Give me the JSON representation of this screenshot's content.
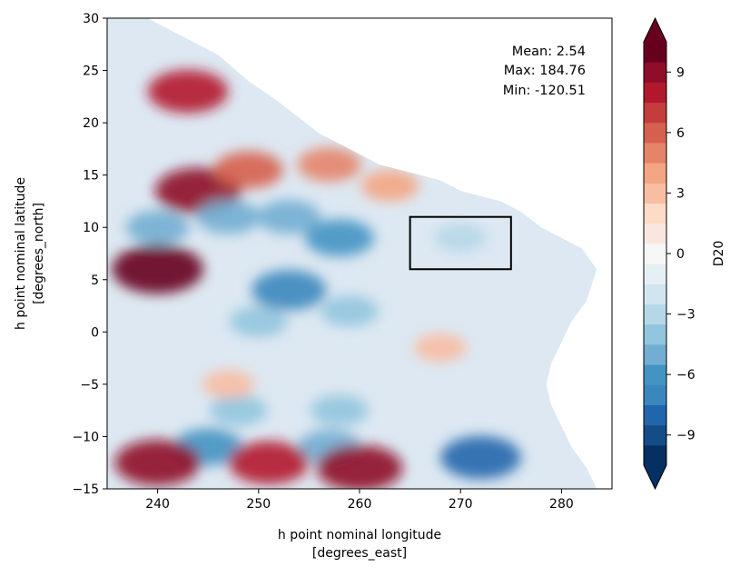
{
  "chart_data": {
    "type": "heatmap",
    "variable": "D20",
    "xlabel": "h point nominal longitude",
    "xlabel_units": "[degrees_east]",
    "ylabel": "h point nominal latitude",
    "ylabel_units": "[degrees_north]",
    "xlim": [
      235,
      285
    ],
    "ylim": [
      -15,
      30
    ],
    "x_ticks": [
      240,
      250,
      260,
      270,
      280
    ],
    "y_ticks": [
      -15,
      -10,
      -5,
      0,
      5,
      10,
      15,
      20,
      25,
      30
    ],
    "colorbar": {
      "label": "D20",
      "min": -10.5,
      "max": 10.5,
      "step": 1,
      "extend": "both",
      "ticks": [
        -9,
        -6,
        -3,
        0,
        3,
        6,
        9
      ],
      "tick_labels": [
        "−9",
        "−6",
        "−3",
        "0",
        "3",
        "6",
        "9"
      ],
      "colormap": "RdBu_r"
    },
    "stats": {
      "mean": "Mean: 2.54",
      "max": "Max: 184.76",
      "min": "Min: -120.51"
    },
    "region_box": {
      "lon": [
        265,
        275
      ],
      "lat": [
        6,
        11
      ]
    },
    "anomaly_features": [
      {
        "lon": 240,
        "lat": 6,
        "value": 10
      },
      {
        "lon": 244,
        "lat": 13.5,
        "value": 9
      },
      {
        "lon": 249,
        "lat": 15.5,
        "value": 6
      },
      {
        "lon": 257,
        "lat": 16,
        "value": 5
      },
      {
        "lon": 263,
        "lat": 14,
        "value": 4
      },
      {
        "lon": 243,
        "lat": 23,
        "value": 8
      },
      {
        "lon": 240,
        "lat": 10,
        "value": -5
      },
      {
        "lon": 247,
        "lat": 11,
        "value": -5
      },
      {
        "lon": 253,
        "lat": 11,
        "value": -5
      },
      {
        "lon": 258,
        "lat": 9,
        "value": -6
      },
      {
        "lon": 253,
        "lat": 4,
        "value": -7
      },
      {
        "lon": 259,
        "lat": 2,
        "value": -4
      },
      {
        "lon": 250,
        "lat": 1,
        "value": -4
      },
      {
        "lon": 270,
        "lat": 9,
        "value": -3
      },
      {
        "lon": 248,
        "lat": -7.5,
        "value": -4
      },
      {
        "lon": 258,
        "lat": -7.5,
        "value": -4
      },
      {
        "lon": 247,
        "lat": -5,
        "value": 3
      },
      {
        "lon": 268,
        "lat": -1.5,
        "value": 3
      },
      {
        "lon": 245,
        "lat": -11,
        "value": -6
      },
      {
        "lon": 257,
        "lat": -11,
        "value": -5
      },
      {
        "lon": 240,
        "lat": -12.5,
        "value": 9
      },
      {
        "lon": 251,
        "lat": -12.5,
        "value": 8
      },
      {
        "lon": 260,
        "lat": -13,
        "value": 9
      },
      {
        "lon": 272,
        "lat": -12,
        "value": -8
      }
    ]
  }
}
